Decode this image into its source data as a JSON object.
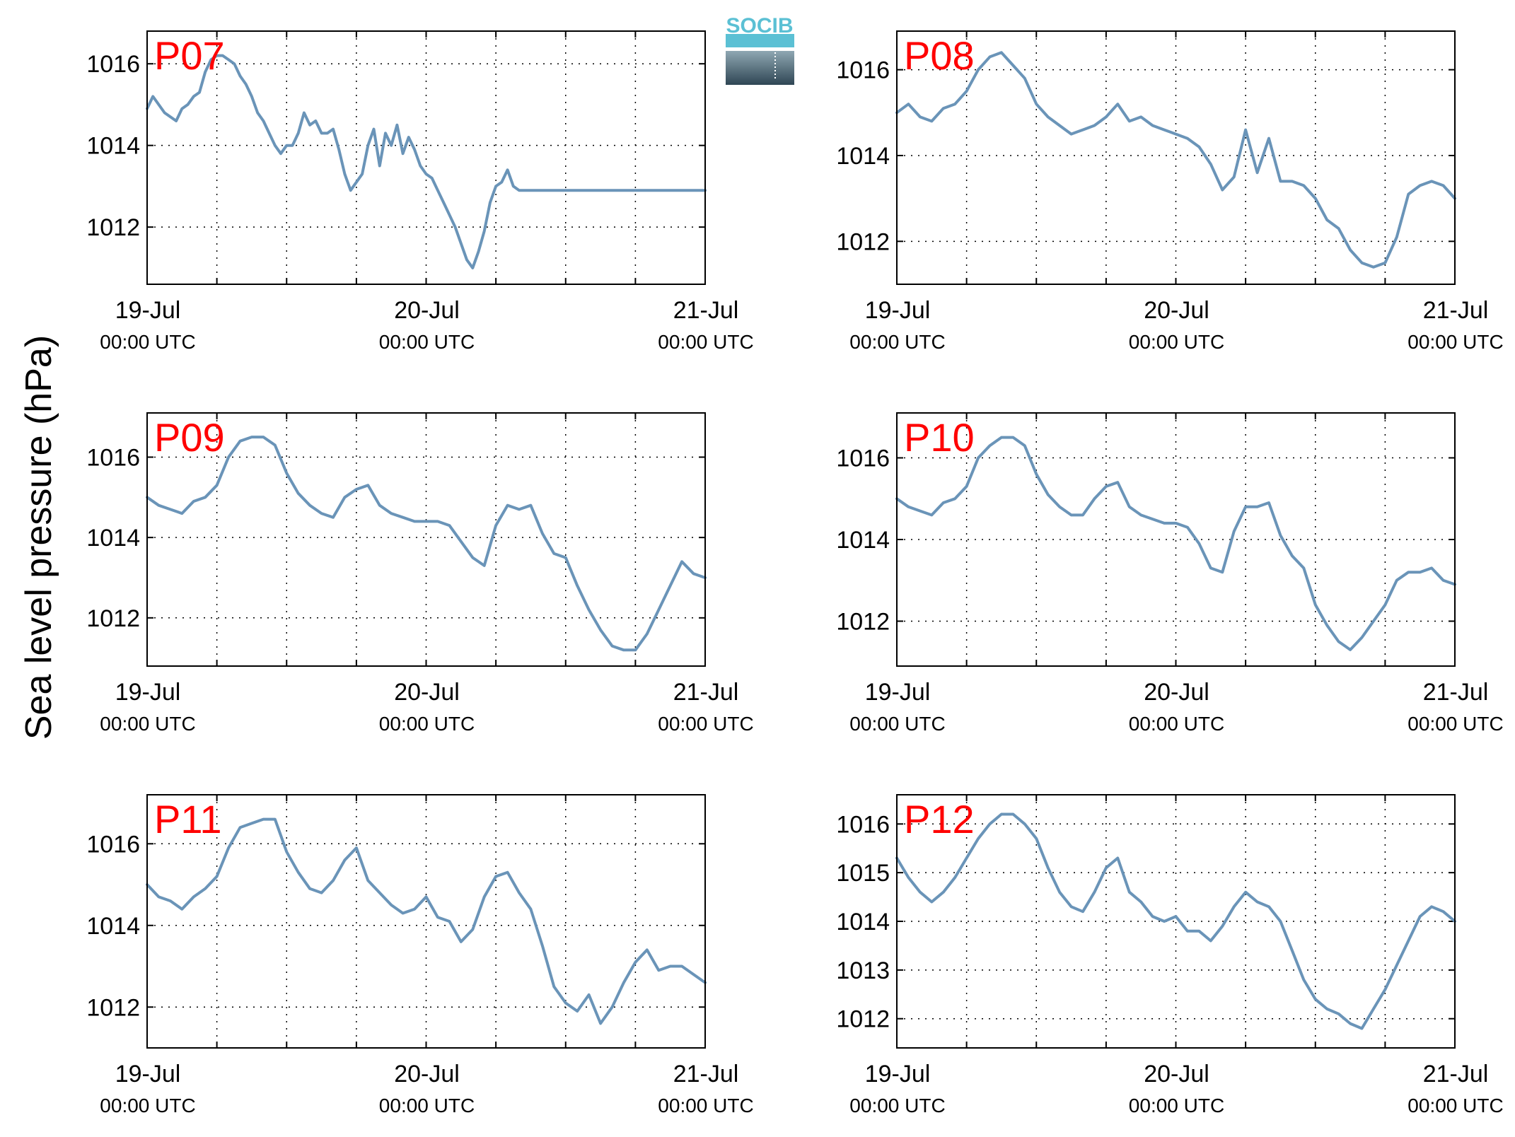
{
  "figure": {
    "ylabel": "Sea level pressure (hPa)",
    "logo_text": "SOCIB",
    "colors": {
      "line": "#6a94b8",
      "title": "#ff0000",
      "grid": "#000000",
      "logo_top": "#5bc0d4",
      "logo_bottom": "#2f4654"
    },
    "x_tick_labels": [
      {
        "date": "19-Jul",
        "time": "00:00 UTC"
      },
      {
        "date": "20-Jul",
        "time": "00:00 UTC"
      },
      {
        "date": "21-Jul",
        "time": "00:00 UTC"
      }
    ]
  },
  "chart_data": [
    {
      "type": "line",
      "title": "P07",
      "xlim": [
        0,
        48
      ],
      "ylim": [
        1010.6,
        1016.8
      ],
      "yticks": [
        1012,
        1014,
        1016
      ],
      "xticks": [
        0,
        6,
        12,
        18,
        24,
        30,
        36,
        42,
        48
      ],
      "grid": true,
      "x": [
        0,
        0.5,
        1,
        1.5,
        2,
        2.5,
        3,
        3.5,
        4,
        4.5,
        5,
        5.5,
        6,
        6.5,
        7,
        7.5,
        8,
        8.5,
        9,
        9.5,
        10,
        10.5,
        11,
        11.5,
        12,
        12.5,
        13,
        13.5,
        14,
        14.5,
        15,
        15.5,
        16,
        16.5,
        17,
        17.5,
        18,
        18.5,
        19,
        19.5,
        20,
        20.5,
        21,
        21.5,
        22,
        22.5,
        23,
        23.5,
        24,
        24.5,
        25,
        25.5,
        26,
        26.5,
        27,
        27.5,
        28,
        28.5,
        29,
        29.5,
        30,
        30.5,
        31,
        31.5,
        32,
        32.5,
        33,
        33.5,
        34,
        34.5,
        35,
        35.5,
        36,
        36.5,
        37,
        37.5,
        38,
        38.5,
        39,
        39.5,
        40,
        40.5,
        41,
        41.5,
        42,
        42.5,
        43,
        43.5,
        44,
        44.5,
        45,
        45.5,
        46,
        46.5,
        47,
        47.5,
        48
      ],
      "y": [
        1014.9,
        1015.2,
        1015.0,
        1014.8,
        1014.7,
        1014.6,
        1014.9,
        1015.0,
        1015.2,
        1015.3,
        1015.8,
        1016.1,
        1016.2,
        1016.2,
        1016.1,
        1016.0,
        1015.7,
        1015.5,
        1015.2,
        1014.8,
        1014.6,
        1014.3,
        1014.0,
        1013.8,
        1014.0,
        1014.0,
        1014.3,
        1014.8,
        1014.5,
        1014.6,
        1014.3,
        1014.3,
        1014.4,
        1013.9,
        1013.3,
        1012.9,
        1013.1,
        1013.3,
        1014.0,
        1014.4,
        1013.5,
        1014.3,
        1014.0,
        1014.5,
        1013.8,
        1014.2,
        1013.9,
        1013.5,
        1013.3,
        1013.2,
        1012.9,
        1012.6,
        1012.3,
        1012.0,
        1011.6,
        1011.2,
        1011.0,
        1011.4,
        1011.9,
        1012.6,
        1013.0,
        1013.1,
        1013.4,
        1013.0,
        1012.9,
        1012.9,
        1012.9,
        1012.9,
        1012.9,
        1012.9,
        1012.9,
        1012.9,
        1012.9,
        1012.9,
        1012.9,
        1012.9,
        1012.9,
        1012.9,
        1012.9,
        1012.9,
        1012.9,
        1012.9,
        1012.9,
        1012.9,
        1012.9,
        1012.9,
        1012.9,
        1012.9,
        1012.9,
        1012.9,
        1012.9,
        1012.9,
        1012.9,
        1012.9,
        1012.9,
        1012.9,
        1012.9
      ]
    },
    {
      "type": "line",
      "title": "P08",
      "xlim": [
        0,
        48
      ],
      "ylim": [
        1011.0,
        1016.9
      ],
      "yticks": [
        1012,
        1014,
        1016
      ],
      "xticks": [
        0,
        6,
        12,
        18,
        24,
        30,
        36,
        42,
        48
      ],
      "grid": true,
      "x": [
        0,
        1,
        2,
        3,
        4,
        5,
        6,
        7,
        8,
        9,
        10,
        11,
        12,
        13,
        14,
        15,
        16,
        17,
        18,
        19,
        20,
        21,
        22,
        23,
        24,
        25,
        26,
        27,
        28,
        29,
        30,
        31,
        32,
        33,
        34,
        35,
        36,
        37,
        38,
        39,
        40,
        41,
        42,
        43,
        44,
        45,
        46,
        47,
        48
      ],
      "y": [
        1015.0,
        1015.2,
        1014.9,
        1014.8,
        1015.1,
        1015.2,
        1015.5,
        1016.0,
        1016.3,
        1016.4,
        1016.1,
        1015.8,
        1015.2,
        1014.9,
        1014.7,
        1014.5,
        1014.6,
        1014.7,
        1014.9,
        1015.2,
        1014.8,
        1014.9,
        1014.7,
        1014.6,
        1014.5,
        1014.4,
        1014.2,
        1013.8,
        1013.2,
        1013.5,
        1014.6,
        1013.6,
        1014.4,
        1013.4,
        1013.4,
        1013.3,
        1013.0,
        1012.5,
        1012.3,
        1011.8,
        1011.5,
        1011.4,
        1011.5,
        1012.1,
        1013.1,
        1013.3,
        1013.4,
        1013.3,
        1013.0
      ]
    },
    {
      "type": "line",
      "title": "P09",
      "xlim": [
        0,
        48
      ],
      "ylim": [
        1010.8,
        1017.1
      ],
      "yticks": [
        1012,
        1014,
        1016
      ],
      "xticks": [
        0,
        6,
        12,
        18,
        24,
        30,
        36,
        42,
        48
      ],
      "grid": true,
      "x": [
        0,
        1,
        2,
        3,
        4,
        5,
        6,
        7,
        8,
        9,
        10,
        11,
        12,
        13,
        14,
        15,
        16,
        17,
        18,
        19,
        20,
        21,
        22,
        23,
        24,
        25,
        26,
        27,
        28,
        29,
        30,
        31,
        32,
        33,
        34,
        35,
        36,
        37,
        38,
        39,
        40,
        41,
        42,
        43,
        44,
        45,
        46,
        47,
        48
      ],
      "y": [
        1015.0,
        1014.8,
        1014.7,
        1014.6,
        1014.9,
        1015.0,
        1015.3,
        1016.0,
        1016.4,
        1016.5,
        1016.5,
        1016.3,
        1015.6,
        1015.1,
        1014.8,
        1014.6,
        1014.5,
        1015.0,
        1015.2,
        1015.3,
        1014.8,
        1014.6,
        1014.5,
        1014.4,
        1014.4,
        1014.4,
        1014.3,
        1013.9,
        1013.5,
        1013.3,
        1014.3,
        1014.8,
        1014.7,
        1014.8,
        1014.1,
        1013.6,
        1013.5,
        1012.8,
        1012.2,
        1011.7,
        1011.3,
        1011.2,
        1011.2,
        1011.6,
        1012.2,
        1012.8,
        1013.4,
        1013.1,
        1013.0
      ]
    },
    {
      "type": "line",
      "title": "P10",
      "xlim": [
        0,
        48
      ],
      "ylim": [
        1010.9,
        1017.1
      ],
      "yticks": [
        1012,
        1014,
        1016
      ],
      "xticks": [
        0,
        6,
        12,
        18,
        24,
        30,
        36,
        42,
        48
      ],
      "grid": true,
      "x": [
        0,
        1,
        2,
        3,
        4,
        5,
        6,
        7,
        8,
        9,
        10,
        11,
        12,
        13,
        14,
        15,
        16,
        17,
        18,
        19,
        20,
        21,
        22,
        23,
        24,
        25,
        26,
        27,
        28,
        29,
        30,
        31,
        32,
        33,
        34,
        35,
        36,
        37,
        38,
        39,
        40,
        41,
        42,
        43,
        44,
        45,
        46,
        47,
        48
      ],
      "y": [
        1015.0,
        1014.8,
        1014.7,
        1014.6,
        1014.9,
        1015.0,
        1015.3,
        1016.0,
        1016.3,
        1016.5,
        1016.5,
        1016.3,
        1015.6,
        1015.1,
        1014.8,
        1014.6,
        1014.6,
        1015.0,
        1015.3,
        1015.4,
        1014.8,
        1014.6,
        1014.5,
        1014.4,
        1014.4,
        1014.3,
        1013.9,
        1013.3,
        1013.2,
        1014.2,
        1014.8,
        1014.8,
        1014.9,
        1014.1,
        1013.6,
        1013.3,
        1012.4,
        1011.9,
        1011.5,
        1011.3,
        1011.6,
        1012.0,
        1012.4,
        1013.0,
        1013.2,
        1013.2,
        1013.3,
        1013.0,
        1012.9
      ]
    },
    {
      "type": "line",
      "title": "P11",
      "xlim": [
        0,
        48
      ],
      "ylim": [
        1011.0,
        1017.2
      ],
      "yticks": [
        1012,
        1014,
        1016
      ],
      "xticks": [
        0,
        6,
        12,
        18,
        24,
        30,
        36,
        42,
        48
      ],
      "grid": true,
      "x": [
        0,
        1,
        2,
        3,
        4,
        5,
        6,
        7,
        8,
        9,
        10,
        11,
        12,
        13,
        14,
        15,
        16,
        17,
        18,
        19,
        20,
        21,
        22,
        23,
        24,
        25,
        26,
        27,
        28,
        29,
        30,
        31,
        32,
        33,
        34,
        35,
        36,
        37,
        38,
        39,
        40,
        41,
        42,
        43,
        44,
        45,
        46,
        47,
        48
      ],
      "y": [
        1015.0,
        1014.7,
        1014.6,
        1014.4,
        1014.7,
        1014.9,
        1015.2,
        1015.9,
        1016.4,
        1016.5,
        1016.6,
        1016.6,
        1015.8,
        1015.3,
        1014.9,
        1014.8,
        1015.1,
        1015.6,
        1015.9,
        1015.1,
        1014.8,
        1014.5,
        1014.3,
        1014.4,
        1014.7,
        1014.2,
        1014.1,
        1013.6,
        1013.9,
        1014.7,
        1015.2,
        1015.3,
        1014.8,
        1014.4,
        1013.5,
        1012.5,
        1012.1,
        1011.9,
        1012.3,
        1011.6,
        1012.0,
        1012.6,
        1013.1,
        1013.4,
        1012.9,
        1013.0,
        1013.0,
        1012.8,
        1012.6
      ]
    },
    {
      "type": "line",
      "title": "P12",
      "xlim": [
        0,
        48
      ],
      "ylim": [
        1011.4,
        1016.6
      ],
      "yticks": [
        1012,
        1013,
        1014,
        1015,
        1016
      ],
      "xticks": [
        0,
        6,
        12,
        18,
        24,
        30,
        36,
        42,
        48
      ],
      "grid": true,
      "x": [
        0,
        1,
        2,
        3,
        4,
        5,
        6,
        7,
        8,
        9,
        10,
        11,
        12,
        13,
        14,
        15,
        16,
        17,
        18,
        19,
        20,
        21,
        22,
        23,
        24,
        25,
        26,
        27,
        28,
        29,
        30,
        31,
        32,
        33,
        34,
        35,
        36,
        37,
        38,
        39,
        40,
        41,
        42,
        43,
        44,
        45,
        46,
        47,
        48
      ],
      "y": [
        1015.3,
        1014.9,
        1014.6,
        1014.4,
        1014.6,
        1014.9,
        1015.3,
        1015.7,
        1016.0,
        1016.2,
        1016.2,
        1016.0,
        1015.7,
        1015.1,
        1014.6,
        1014.3,
        1014.2,
        1014.6,
        1015.1,
        1015.3,
        1014.6,
        1014.4,
        1014.1,
        1014.0,
        1014.1,
        1013.8,
        1013.8,
        1013.6,
        1013.9,
        1014.3,
        1014.6,
        1014.4,
        1014.3,
        1014.0,
        1013.4,
        1012.8,
        1012.4,
        1012.2,
        1012.1,
        1011.9,
        1011.8,
        1012.2,
        1012.6,
        1013.1,
        1013.6,
        1014.1,
        1014.3,
        1014.2,
        1014.0
      ]
    }
  ]
}
